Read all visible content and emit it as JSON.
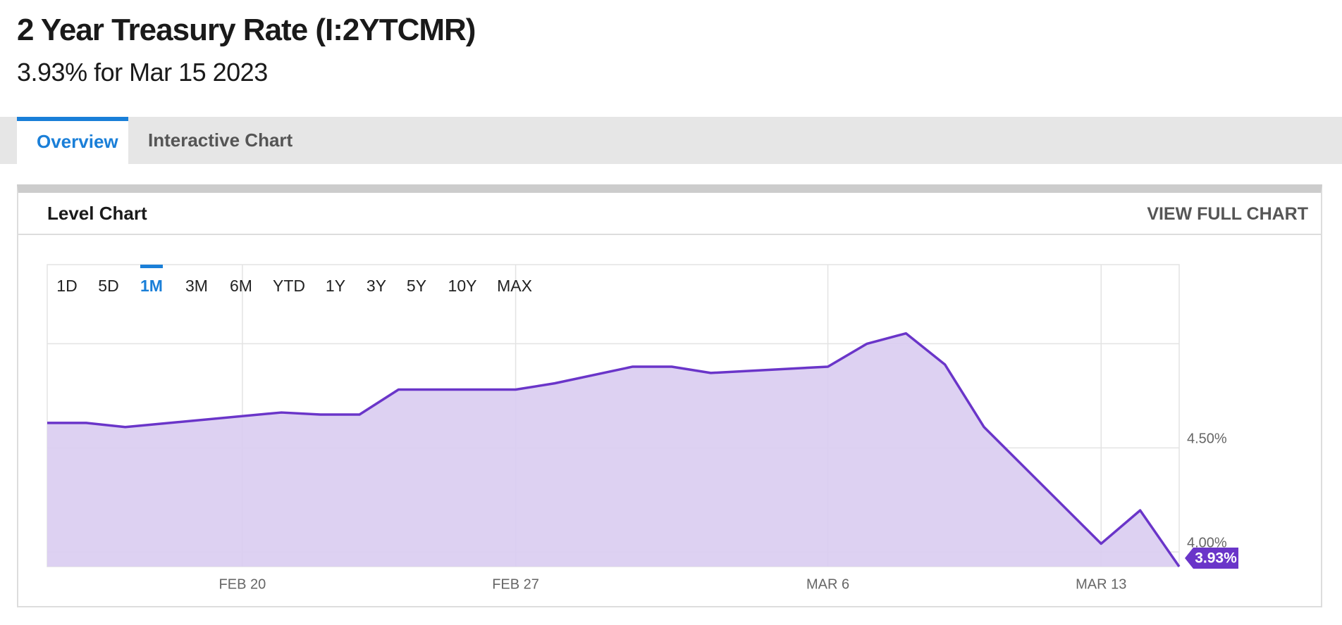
{
  "header": {
    "title": "2 Year Treasury Rate (I:2YTCMR)",
    "subtitle": "3.93% for Mar 15 2023"
  },
  "tabs": [
    "Overview",
    "Interactive Chart"
  ],
  "card": {
    "title": "Level Chart",
    "link": "VIEW FULL CHART"
  },
  "ranges": [
    "1D",
    "5D",
    "1M",
    "3M",
    "6M",
    "YTD",
    "1Y",
    "3Y",
    "5Y",
    "10Y",
    "MAX"
  ],
  "selected_range": "1M",
  "chart_data": {
    "type": "area",
    "x": [
      "Feb 15",
      "Feb 16",
      "Feb 17",
      "Feb 21",
      "Feb 22",
      "Feb 23",
      "Feb 24",
      "Feb 27",
      "Feb 28",
      "Mar 1",
      "Mar 2",
      "Mar 3",
      "Mar 6",
      "Mar 7",
      "Mar 8",
      "Mar 9",
      "Mar 10",
      "Mar 13",
      "Mar 14",
      "Mar 15"
    ],
    "values": [
      4.62,
      4.62,
      4.6,
      4.67,
      4.66,
      4.66,
      4.78,
      4.78,
      4.81,
      4.89,
      4.89,
      4.86,
      4.89,
      5.0,
      5.05,
      4.9,
      4.6,
      4.04,
      4.2,
      3.93
    ],
    "current_label": "3.93%",
    "color": "#6a35c9",
    "fill": "#d9ccf1",
    "xlim": [
      "Feb 15",
      "Mar 15"
    ],
    "xticks": [
      {
        "value": "Feb 20",
        "label": "FEB 20"
      },
      {
        "value": "Feb 27",
        "label": "FEB 27"
      },
      {
        "value": "Mar 6",
        "label": "MAR 6"
      },
      {
        "value": "Mar 13",
        "label": "MAR 13"
      }
    ],
    "ylim": [
      3.93,
      5.38
    ],
    "yticks": [
      {
        "value": 4.0,
        "label": "4.00%"
      },
      {
        "value": 4.5,
        "label": "4.50%"
      }
    ],
    "gridlines": [
      4.0,
      4.5,
      5.0
    ],
    "grid": true
  }
}
